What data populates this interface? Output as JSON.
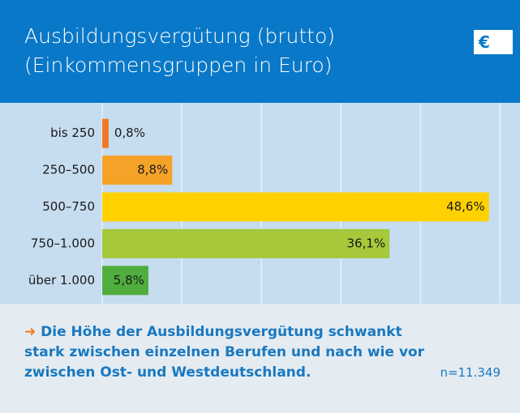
{
  "chart_data": {
    "type": "barh",
    "title": "Ausbildungsvergütung (brutto)",
    "subtitle": "(Einkommensgruppen in Euro)",
    "badge": "€",
    "categories": [
      "bis 250",
      "250–500",
      "500–750",
      "750–1.000",
      "über 1.000"
    ],
    "values": [
      0.8,
      8.8,
      48.6,
      36.1,
      5.8
    ],
    "value_labels": [
      "0,8%",
      "8,8%",
      "48,6%",
      "36,1%",
      "5,8%"
    ],
    "colors": [
      "#f07a22",
      "#f5a328",
      "#ffd100",
      "#a6c83a",
      "#4fae3d"
    ],
    "xlim": [
      0,
      52.5
    ],
    "xticks": [
      0,
      10,
      20,
      30,
      40,
      50
    ],
    "grid": true,
    "note": "Die Höhe der Ausbildungsvergütung schwankt stark zwischen einzelnen Berufen und nach wie vor zwischen Ost- und Westdeutschland.",
    "sample_size": "n=11.349"
  }
}
